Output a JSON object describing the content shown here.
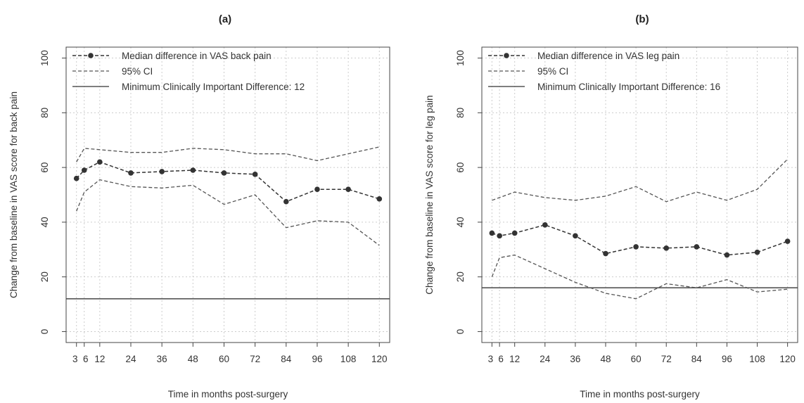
{
  "colors": {
    "series": "#333333",
    "ci": "#555555",
    "mcid": "#555555",
    "grid": "#cccccc",
    "frame": "#444444"
  },
  "chart_data": [
    {
      "type": "line",
      "title": "(a)",
      "xlabel": "Time in months post-surgery",
      "ylabel": "Change from baseline in VAS score for back pain",
      "x": [
        3,
        6,
        12,
        24,
        36,
        48,
        60,
        72,
        84,
        96,
        108,
        120
      ],
      "xticks": [
        3,
        6,
        12,
        24,
        36,
        48,
        60,
        72,
        84,
        96,
        108,
        120
      ],
      "xtick_labels": [
        "3",
        "6",
        "12",
        "24",
        "36",
        "48",
        "60",
        "72",
        "84",
        "96",
        "108",
        "120"
      ],
      "yticks": [
        0,
        20,
        40,
        60,
        80,
        100
      ],
      "ytick_labels": [
        "0",
        "20",
        "40",
        "60",
        "80",
        "100"
      ],
      "xlim": [
        -1,
        124
      ],
      "ylim": [
        -4,
        104
      ],
      "grid": true,
      "legend_position": "top-left",
      "series": [
        {
          "name": "Median difference in VAS back pain",
          "style": "dashed-markers",
          "values": [
            56,
            59,
            62,
            58,
            58.5,
            59,
            58,
            57.5,
            47.5,
            52,
            52,
            48.5
          ]
        },
        {
          "name": "95% CI",
          "style": "dashed",
          "values": [
            44,
            51,
            55.5,
            53,
            52.5,
            53.5,
            46.5,
            50,
            38,
            40.5,
            40,
            31.5
          ]
        },
        {
          "name": "",
          "style": "dashed",
          "values": [
            62,
            67,
            66.5,
            65.5,
            65.5,
            67,
            66.5,
            65,
            65,
            62.5,
            65,
            67.5
          ]
        }
      ],
      "reference_line": {
        "label": "Minimum Clinically Important Difference: 12",
        "value": 12
      }
    },
    {
      "type": "line",
      "title": "(b)",
      "xlabel": "Time in months post-surgery",
      "ylabel": "Change from baseline in VAS score for leg pain",
      "x": [
        3,
        6,
        12,
        24,
        36,
        48,
        60,
        72,
        84,
        96,
        108,
        120
      ],
      "xticks": [
        3,
        6,
        12,
        24,
        36,
        48,
        60,
        72,
        84,
        96,
        108,
        120
      ],
      "xtick_labels": [
        "3",
        "6",
        "12",
        "24",
        "36",
        "48",
        "60",
        "72",
        "84",
        "96",
        "108",
        "120"
      ],
      "yticks": [
        0,
        20,
        40,
        60,
        80,
        100
      ],
      "ytick_labels": [
        "0",
        "20",
        "40",
        "60",
        "80",
        "100"
      ],
      "xlim": [
        -1,
        124
      ],
      "ylim": [
        -4,
        104
      ],
      "grid": true,
      "legend_position": "top-left",
      "series": [
        {
          "name": "Median difference in VAS leg pain",
          "style": "dashed-markers",
          "values": [
            36,
            35,
            36,
            39,
            35,
            28.5,
            31,
            30.5,
            31,
            28,
            29,
            33
          ]
        },
        {
          "name": "95% CI",
          "style": "dashed",
          "values": [
            20,
            27,
            28,
            23,
            18,
            14,
            12,
            17.5,
            16,
            19,
            14.5,
            15.5
          ]
        },
        {
          "name": "",
          "style": "dashed",
          "values": [
            48,
            49,
            51,
            49,
            48,
            49.5,
            53,
            47.5,
            51,
            48,
            52,
            63
          ]
        }
      ],
      "reference_line": {
        "label": "Minimum Clinically Important Difference: 16",
        "value": 16
      }
    }
  ]
}
